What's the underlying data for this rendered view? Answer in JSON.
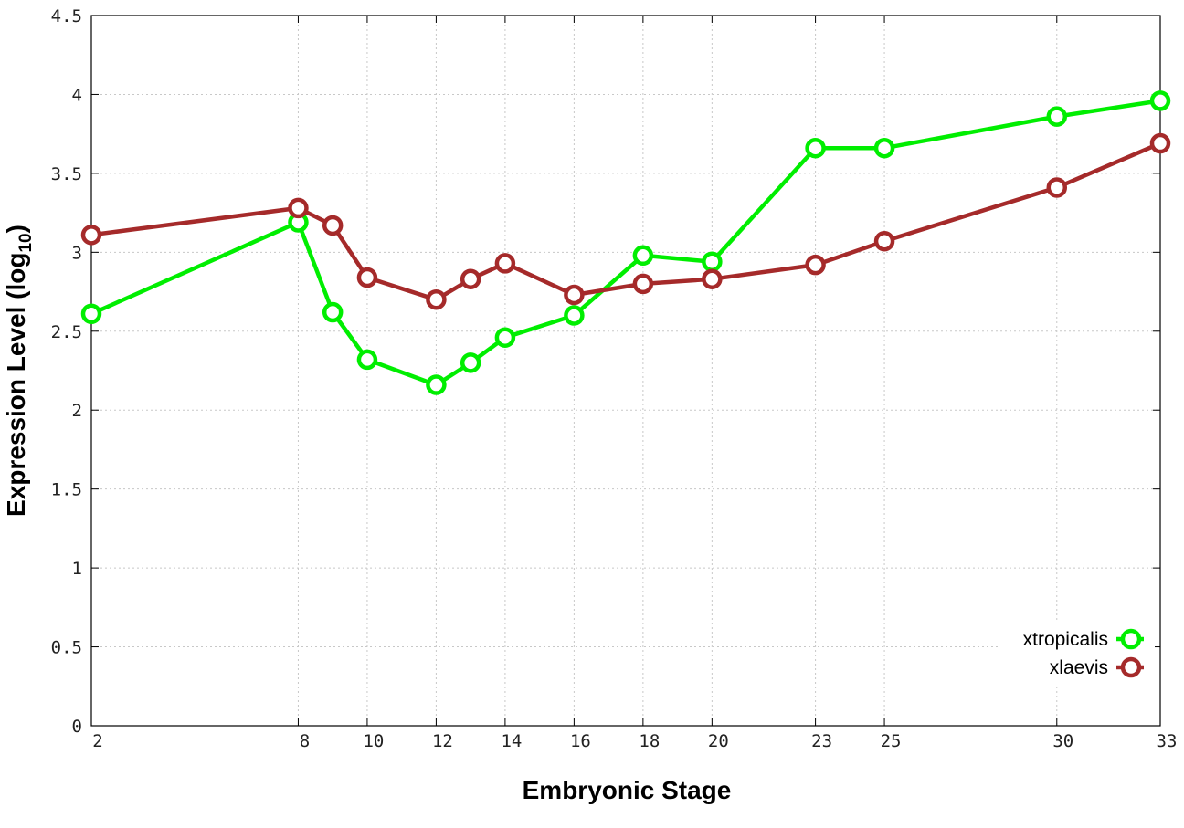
{
  "chart_data": {
    "type": "line",
    "title": "",
    "xlabel": "Embryonic Stage",
    "ylabel_main": "Expression Level (log",
    "ylabel_sub": "10",
    "ylabel_close": ")",
    "xlim": [
      2,
      33
    ],
    "ylim": [
      0,
      4.5
    ],
    "x_ticks": [
      2,
      8,
      10,
      12,
      14,
      16,
      18,
      20,
      23,
      25,
      30,
      33
    ],
    "y_ticks": [
      0,
      0.5,
      1,
      1.5,
      2,
      2.5,
      3,
      3.5,
      4,
      4.5
    ],
    "y_tick_labels": [
      "0",
      "0.5",
      "1",
      "1.5",
      "2",
      "2.5",
      "3",
      "3.5",
      "4",
      "4.5"
    ],
    "x_tick_labels": [
      "2",
      "8",
      "10",
      "12",
      "14",
      "16",
      "18",
      "20",
      "23",
      "25",
      "30",
      "33"
    ],
    "grid": true,
    "legend_position": "bottom-right",
    "series": [
      {
        "name": "xtropicalis",
        "color": "#00ee00",
        "x": [
          2,
          8,
          9,
          10,
          12,
          13,
          14,
          16,
          18,
          20,
          23,
          25,
          30,
          33
        ],
        "y": [
          2.61,
          3.19,
          2.62,
          2.32,
          2.16,
          2.3,
          2.46,
          2.6,
          2.98,
          2.94,
          3.66,
          3.66,
          3.86,
          3.96
        ]
      },
      {
        "name": "xlaevis",
        "color": "#a52a2a",
        "x": [
          2,
          8,
          9,
          10,
          12,
          13,
          14,
          16,
          18,
          20,
          23,
          25,
          30,
          33
        ],
        "y": [
          3.11,
          3.28,
          3.17,
          2.84,
          2.7,
          2.83,
          2.93,
          2.73,
          2.8,
          2.83,
          2.92,
          3.07,
          3.41,
          3.69
        ]
      }
    ]
  }
}
